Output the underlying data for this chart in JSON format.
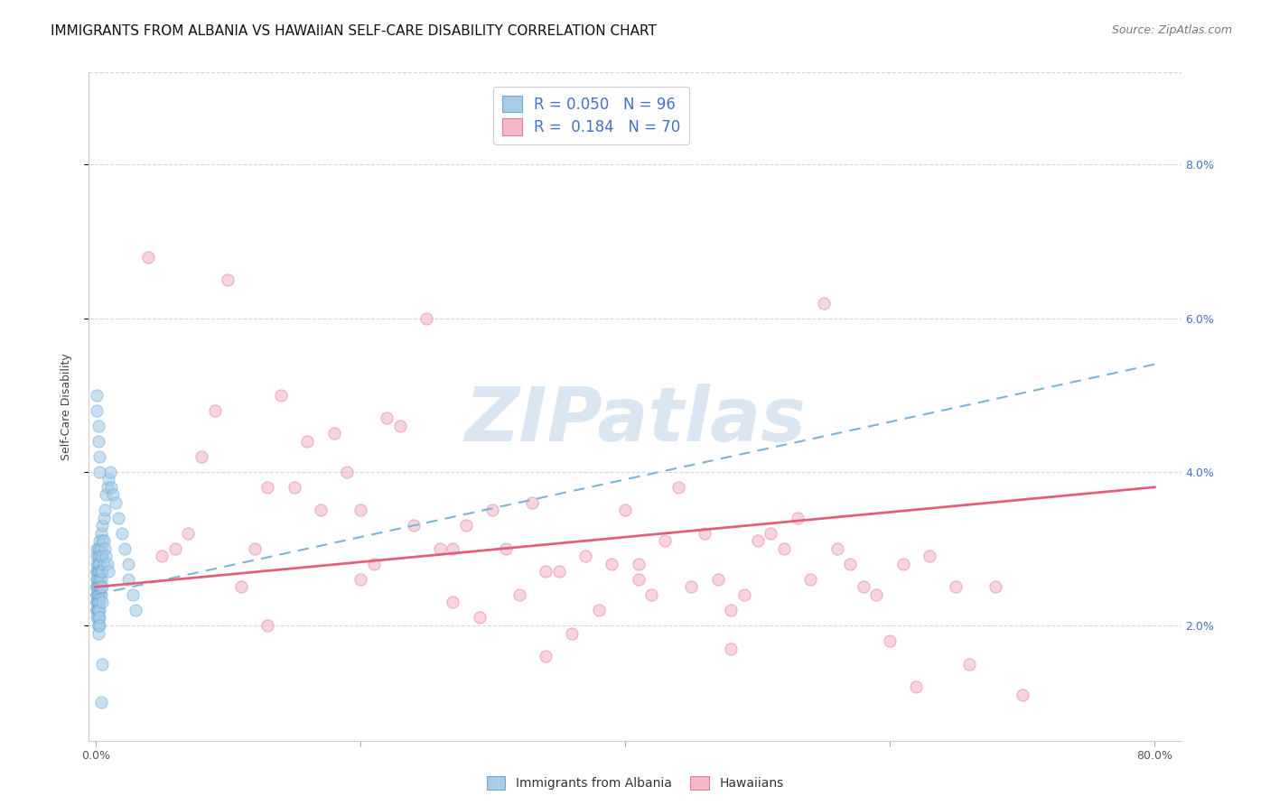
{
  "title": "IMMIGRANTS FROM ALBANIA VS HAWAIIAN SELF-CARE DISABILITY CORRELATION CHART",
  "source": "Source: ZipAtlas.com",
  "ylabel": "Self-Care Disability",
  "ytick_labels": [
    "2.0%",
    "4.0%",
    "6.0%",
    "8.0%"
  ],
  "ytick_values": [
    0.02,
    0.04,
    0.06,
    0.08
  ],
  "xlim": [
    -0.005,
    0.82
  ],
  "ylim": [
    0.005,
    0.092
  ],
  "legend_line1": "R = 0.050   N = 96",
  "legend_line2": "R =  0.184   N = 70",
  "watermark": "ZIPatlas",
  "blue_scatter_x": [
    0.001,
    0.001,
    0.001,
    0.001,
    0.001,
    0.001,
    0.001,
    0.001,
    0.001,
    0.001,
    0.001,
    0.001,
    0.001,
    0.001,
    0.001,
    0.001,
    0.001,
    0.001,
    0.001,
    0.001,
    0.002,
    0.002,
    0.002,
    0.002,
    0.002,
    0.002,
    0.002,
    0.002,
    0.002,
    0.002,
    0.002,
    0.002,
    0.002,
    0.002,
    0.002,
    0.002,
    0.002,
    0.002,
    0.002,
    0.002,
    0.003,
    0.003,
    0.003,
    0.003,
    0.003,
    0.003,
    0.003,
    0.003,
    0.003,
    0.003,
    0.003,
    0.003,
    0.003,
    0.004,
    0.004,
    0.004,
    0.004,
    0.004,
    0.004,
    0.004,
    0.005,
    0.005,
    0.005,
    0.005,
    0.005,
    0.005,
    0.006,
    0.006,
    0.006,
    0.007,
    0.007,
    0.008,
    0.008,
    0.009,
    0.009,
    0.01,
    0.01,
    0.011,
    0.012,
    0.013,
    0.015,
    0.017,
    0.02,
    0.022,
    0.025,
    0.025,
    0.028,
    0.03,
    0.001,
    0.001,
    0.002,
    0.002,
    0.003,
    0.003,
    0.004,
    0.005
  ],
  "blue_scatter_y": [
    0.03,
    0.029,
    0.028,
    0.027,
    0.027,
    0.026,
    0.026,
    0.025,
    0.025,
    0.025,
    0.024,
    0.024,
    0.024,
    0.023,
    0.023,
    0.023,
    0.022,
    0.022,
    0.022,
    0.021,
    0.03,
    0.029,
    0.028,
    0.028,
    0.027,
    0.027,
    0.026,
    0.025,
    0.025,
    0.024,
    0.024,
    0.023,
    0.023,
    0.022,
    0.022,
    0.021,
    0.021,
    0.02,
    0.02,
    0.019,
    0.031,
    0.03,
    0.029,
    0.028,
    0.027,
    0.026,
    0.025,
    0.025,
    0.024,
    0.023,
    0.022,
    0.021,
    0.02,
    0.032,
    0.03,
    0.029,
    0.027,
    0.026,
    0.025,
    0.024,
    0.033,
    0.031,
    0.029,
    0.027,
    0.025,
    0.023,
    0.034,
    0.031,
    0.028,
    0.035,
    0.03,
    0.037,
    0.029,
    0.038,
    0.028,
    0.039,
    0.027,
    0.04,
    0.038,
    0.037,
    0.036,
    0.034,
    0.032,
    0.03,
    0.028,
    0.026,
    0.024,
    0.022,
    0.05,
    0.048,
    0.046,
    0.044,
    0.042,
    0.04,
    0.01,
    0.015
  ],
  "pink_scatter_x": [
    0.04,
    0.06,
    0.07,
    0.08,
    0.09,
    0.1,
    0.11,
    0.12,
    0.13,
    0.14,
    0.15,
    0.16,
    0.17,
    0.18,
    0.19,
    0.2,
    0.21,
    0.22,
    0.23,
    0.24,
    0.25,
    0.26,
    0.27,
    0.28,
    0.29,
    0.3,
    0.31,
    0.32,
    0.33,
    0.34,
    0.35,
    0.36,
    0.37,
    0.38,
    0.39,
    0.4,
    0.41,
    0.42,
    0.43,
    0.44,
    0.45,
    0.46,
    0.47,
    0.48,
    0.49,
    0.5,
    0.51,
    0.52,
    0.53,
    0.54,
    0.55,
    0.56,
    0.57,
    0.58,
    0.59,
    0.6,
    0.61,
    0.62,
    0.63,
    0.65,
    0.66,
    0.68,
    0.7,
    0.05,
    0.13,
    0.2,
    0.27,
    0.34,
    0.41,
    0.48
  ],
  "pink_scatter_y": [
    0.068,
    0.03,
    0.032,
    0.042,
    0.048,
    0.065,
    0.025,
    0.03,
    0.038,
    0.05,
    0.038,
    0.044,
    0.035,
    0.045,
    0.04,
    0.035,
    0.028,
    0.047,
    0.046,
    0.033,
    0.06,
    0.03,
    0.03,
    0.033,
    0.021,
    0.035,
    0.03,
    0.024,
    0.036,
    0.027,
    0.027,
    0.019,
    0.029,
    0.022,
    0.028,
    0.035,
    0.026,
    0.024,
    0.031,
    0.038,
    0.025,
    0.032,
    0.026,
    0.022,
    0.024,
    0.031,
    0.032,
    0.03,
    0.034,
    0.026,
    0.062,
    0.03,
    0.028,
    0.025,
    0.024,
    0.018,
    0.028,
    0.012,
    0.029,
    0.025,
    0.015,
    0.025,
    0.011,
    0.029,
    0.02,
    0.026,
    0.023,
    0.016,
    0.028,
    0.017
  ],
  "blue_line_x": [
    0.0,
    0.8
  ],
  "blue_line_y": [
    0.024,
    0.054
  ],
  "pink_line_x": [
    0.0,
    0.8
  ],
  "pink_line_y": [
    0.025,
    0.038
  ],
  "scatter_alpha": 0.6,
  "scatter_size": 90,
  "blue_marker_color": "#a8cce8",
  "blue_edge_color": "#6aaad4",
  "pink_marker_color": "#f4b8c8",
  "pink_edge_color": "#e8789a",
  "trendline_blue_color": "#7ab4d8",
  "trendline_pink_color": "#e0607a",
  "grid_color": "#d0d8e8",
  "background_color": "#ffffff",
  "title_fontsize": 11,
  "source_fontsize": 9,
  "ylabel_fontsize": 9,
  "tick_fontsize": 9,
  "legend_fontsize": 12,
  "right_tick_color": "#4472c4",
  "watermark_color": "#ccdcef",
  "watermark_fontsize": 60,
  "xtick_positions": [
    0.0,
    0.2,
    0.4,
    0.6,
    0.8
  ],
  "xtick_labels_show": [
    "0.0%",
    "",
    "",
    "",
    "80.0%"
  ]
}
